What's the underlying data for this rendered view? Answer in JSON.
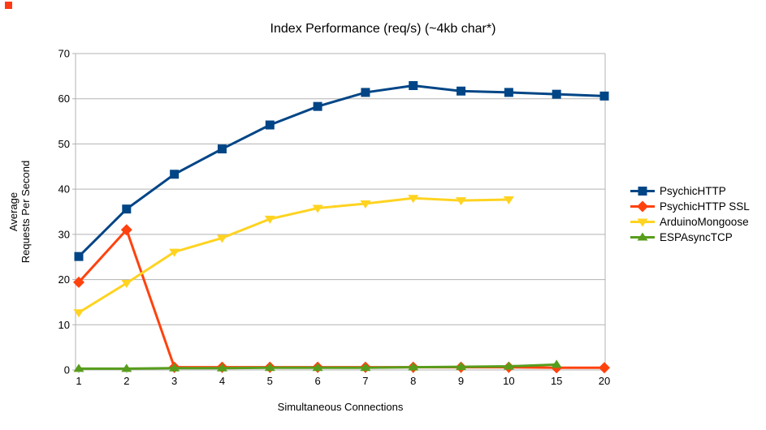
{
  "decorations": {
    "corner_square_color": "#ff3a14"
  },
  "chart_data": {
    "type": "line",
    "title": "Index Performance (req/s) (~4kb char*)",
    "xlabel": "Simultaneous Connections",
    "ylabel_lines": [
      "Average",
      "Requests Per Second"
    ],
    "categories": [
      "1",
      "2",
      "3",
      "4",
      "5",
      "6",
      "7",
      "8",
      "9",
      "10",
      "15",
      "20"
    ],
    "ylim": [
      0,
      70
    ],
    "ytick_step": 10,
    "yticks": [
      0,
      10,
      20,
      30,
      40,
      50,
      60,
      70
    ],
    "grid": "horizontal",
    "gridline_color": "#b3b3b3",
    "legend_position": "right",
    "series": [
      {
        "name": "PsychicHTTP",
        "color": "#004586",
        "marker": "square",
        "values": [
          25.1,
          35.6,
          43.3,
          48.9,
          54.2,
          58.3,
          61.4,
          62.9,
          61.7,
          61.4,
          61.0,
          60.6
        ]
      },
      {
        "name": "PsychicHTTP SSL",
        "color": "#ff420e",
        "marker": "diamond",
        "values": [
          19.4,
          31.0,
          0.6,
          0.6,
          0.6,
          0.6,
          0.6,
          0.6,
          0.6,
          0.6,
          0.5,
          0.5
        ]
      },
      {
        "name": "ArduinoMongoose",
        "color": "#ffd320",
        "marker": "triangle-down",
        "values": [
          12.7,
          19.2,
          26.1,
          29.2,
          33.4,
          35.8,
          36.8,
          38.0,
          37.5,
          37.7,
          null,
          null
        ]
      },
      {
        "name": "ESPAsyncTCP",
        "color": "#579d1c",
        "marker": "triangle-up",
        "values": [
          0.3,
          0.3,
          0.4,
          0.4,
          0.5,
          0.5,
          0.5,
          0.6,
          0.7,
          0.8,
          1.2,
          null
        ]
      }
    ]
  }
}
